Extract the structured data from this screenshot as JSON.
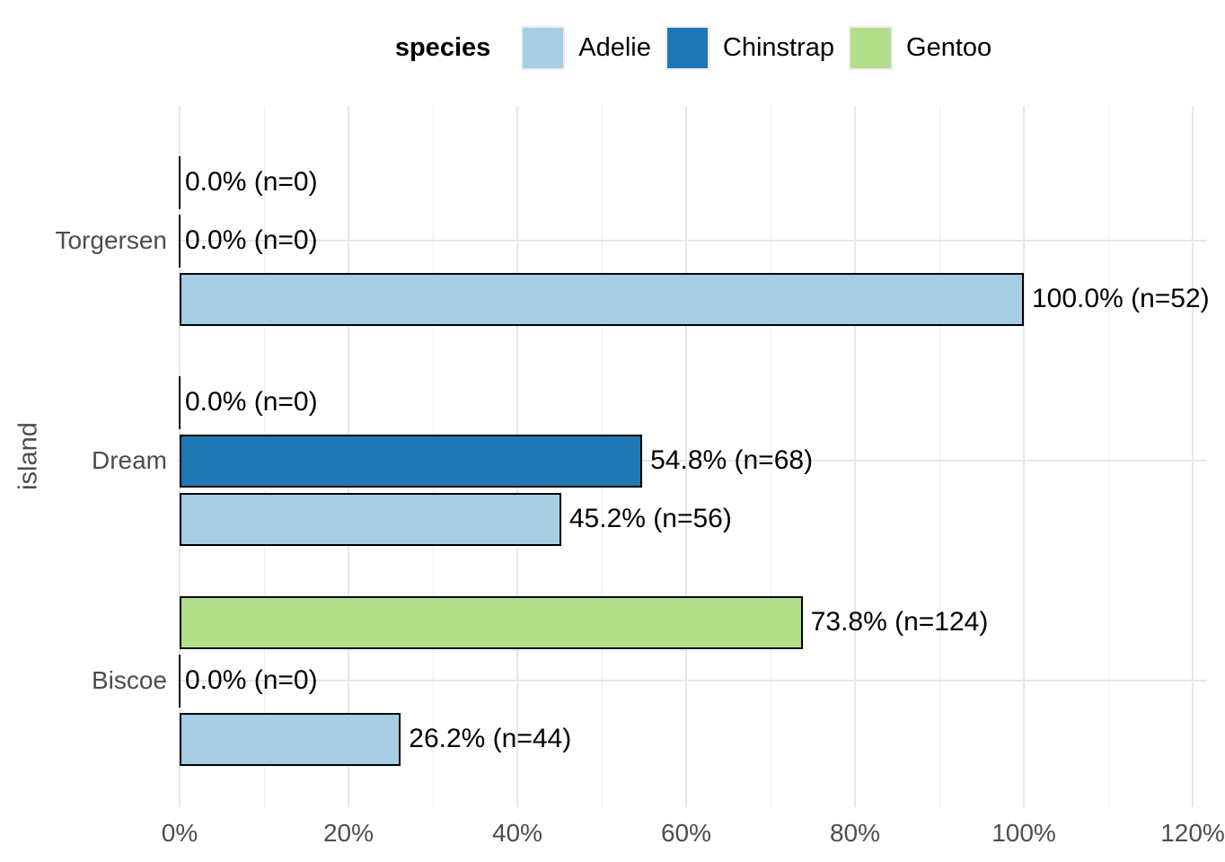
{
  "chart_data": {
    "type": "bar",
    "orientation": "horizontal",
    "grid": "on",
    "legend": {
      "title": "species",
      "position": "top",
      "items": [
        {
          "label": "Adelie",
          "color": "#A6CEE3"
        },
        {
          "label": "Chinstrap",
          "color": "#1F78B4"
        },
        {
          "label": "Gentoo",
          "color": "#B2DF8A"
        }
      ]
    },
    "bar_border_color": "#000000",
    "xlabel": "",
    "ylabel": "island",
    "xlim": [
      0,
      120
    ],
    "x_ticks": [
      {
        "pct": 0,
        "label": "0%"
      },
      {
        "pct": 20,
        "label": "20%"
      },
      {
        "pct": 40,
        "label": "40%"
      },
      {
        "pct": 60,
        "label": "60%"
      },
      {
        "pct": 80,
        "label": "80%"
      },
      {
        "pct": 100,
        "label": "100%"
      },
      {
        "pct": 120,
        "label": "120%"
      }
    ],
    "categories": [
      "Torgersen",
      "Dream",
      "Biscoe"
    ],
    "row_order_top_to_bottom": [
      "Gentoo",
      "Chinstrap",
      "Adelie"
    ],
    "groups": [
      {
        "island": "Torgersen",
        "bars": [
          {
            "species": "Gentoo",
            "pct": 0.0,
            "n": 0,
            "label": "0.0% (n=0)"
          },
          {
            "species": "Chinstrap",
            "pct": 0.0,
            "n": 0,
            "label": "0.0% (n=0)"
          },
          {
            "species": "Adelie",
            "pct": 100.0,
            "n": 52,
            "label": "100.0% (n=52)"
          }
        ]
      },
      {
        "island": "Dream",
        "bars": [
          {
            "species": "Gentoo",
            "pct": 0.0,
            "n": 0,
            "label": "0.0% (n=0)"
          },
          {
            "species": "Chinstrap",
            "pct": 54.8,
            "n": 68,
            "label": "54.8% (n=68)"
          },
          {
            "species": "Adelie",
            "pct": 45.2,
            "n": 56,
            "label": "45.2% (n=56)"
          }
        ]
      },
      {
        "island": "Biscoe",
        "bars": [
          {
            "species": "Gentoo",
            "pct": 73.8,
            "n": 124,
            "label": "73.8% (n=124)"
          },
          {
            "species": "Chinstrap",
            "pct": 0.0,
            "n": 0,
            "label": "0.0% (n=0)"
          },
          {
            "species": "Adelie",
            "pct": 26.2,
            "n": 44,
            "label": "26.2% (n=44)"
          }
        ]
      }
    ]
  }
}
